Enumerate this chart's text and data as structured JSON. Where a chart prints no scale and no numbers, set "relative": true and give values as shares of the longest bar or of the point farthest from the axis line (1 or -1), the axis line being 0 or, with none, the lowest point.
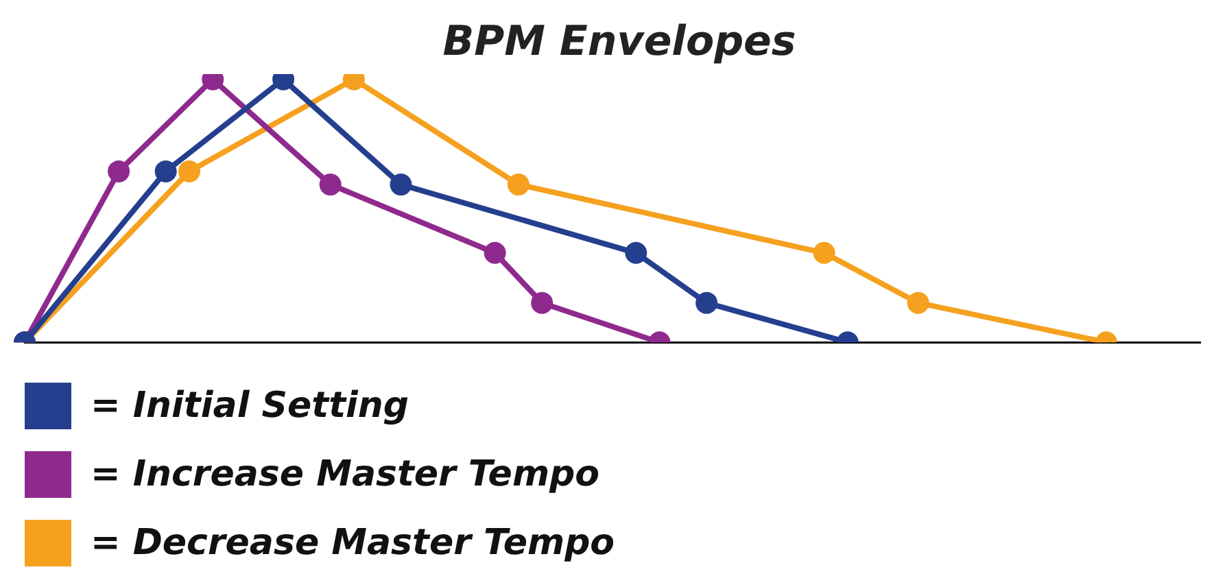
{
  "chart_data": {
    "type": "line",
    "title": "BPM Envelopes",
    "relative": true,
    "grid": false,
    "legend": "bottom left",
    "marker": "circle",
    "line_style": "solid",
    "categories": [
      null,
      null,
      null,
      null,
      null,
      null,
      null,
      null,
      null,
      null,
      null,
      null,
      null,
      null,
      null,
      null,
      null,
      null,
      null,
      null,
      null,
      null,
      null,
      null,
      null,
      null,
      null,
      null,
      null,
      null,
      null,
      null,
      null,
      null,
      null,
      null,
      null,
      null,
      null,
      null,
      null,
      null,
      null,
      null,
      null,
      null,
      null,
      null,
      null,
      null,
      null
    ],
    "series": [
      {
        "name": "= Initial Setting",
        "color": "#253f8f",
        "values": [
          0,
          null,
          null,
          null,
          null,
          null,
          0.65,
          null,
          null,
          null,
          null,
          1,
          null,
          null,
          null,
          null,
          0.6,
          null,
          null,
          null,
          null,
          null,
          null,
          null,
          null,
          null,
          0.34,
          null,
          null,
          0.15,
          null,
          null,
          null,
          null,
          null,
          0,
          null,
          null,
          null,
          null,
          null,
          null,
          null,
          null,
          null,
          null,
          null,
          null,
          null,
          null,
          null
        ]
      },
      {
        "name": "= Increase Master Tempo",
        "color": "#8e2a8e",
        "values": [
          0,
          null,
          null,
          null,
          0.65,
          null,
          null,
          null,
          1,
          null,
          null,
          null,
          null,
          0.6,
          null,
          null,
          null,
          null,
          null,
          null,
          0.34,
          null,
          0.15,
          null,
          null,
          null,
          null,
          0,
          null,
          null,
          null,
          null,
          null,
          null,
          null,
          null,
          null,
          null,
          null,
          null,
          null,
          null,
          null,
          null,
          null,
          null,
          null,
          null,
          null,
          null,
          null
        ]
      },
      {
        "name": "= Decrease Master Tempo",
        "color": "#f5a11f",
        "values": [
          0,
          null,
          null,
          null,
          null,
          null,
          null,
          0.65,
          null,
          null,
          null,
          null,
          null,
          null,
          1,
          null,
          null,
          null,
          null,
          null,
          null,
          0.6,
          null,
          null,
          null,
          null,
          null,
          null,
          null,
          null,
          null,
          null,
          null,
          null,
          0.34,
          null,
          null,
          null,
          0.15,
          null,
          null,
          null,
          null,
          null,
          null,
          null,
          0,
          null,
          null,
          null,
          null
        ]
      }
    ]
  }
}
